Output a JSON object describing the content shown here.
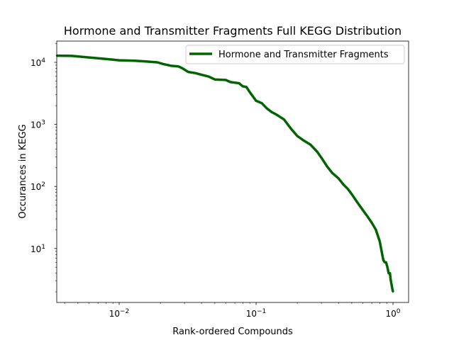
{
  "chart_data": {
    "type": "line",
    "title": "Hormone and Transmitter Fragments Full KEGG Distribution",
    "xlabel": "Rank-ordered Compounds",
    "ylabel": "Occurances in KEGG",
    "xscale": "log",
    "yscale": "log",
    "xlim": [
      0.0035,
      1.3
    ],
    "ylim": [
      1.35,
      22000
    ],
    "xticks": [
      {
        "value": 0.01,
        "base": "10",
        "exp": "−2"
      },
      {
        "value": 0.1,
        "base": "10",
        "exp": "−1"
      },
      {
        "value": 1,
        "base": "10",
        "exp": "0"
      }
    ],
    "yticks": [
      {
        "value": 10,
        "base": "10",
        "exp": "1"
      },
      {
        "value": 100,
        "base": "10",
        "exp": "2"
      },
      {
        "value": 1000,
        "base": "10",
        "exp": "3"
      },
      {
        "value": 10000,
        "base": "10",
        "exp": "4"
      }
    ],
    "grid": false,
    "legend_position": "top-right",
    "series": [
      {
        "name": "Hormone and Transmitter Fragments",
        "color": "#006400",
        "x": [
          0.0035,
          0.0045,
          0.006,
          0.008,
          0.01,
          0.013,
          0.016,
          0.019,
          0.021,
          0.024,
          0.027,
          0.029,
          0.032,
          0.036,
          0.04,
          0.045,
          0.05,
          0.06,
          0.065,
          0.07,
          0.075,
          0.08,
          0.085,
          0.09,
          0.1,
          0.11,
          0.12,
          0.13,
          0.14,
          0.16,
          0.18,
          0.2,
          0.22,
          0.25,
          0.28,
          0.3,
          0.33,
          0.36,
          0.4,
          0.43,
          0.47,
          0.5,
          0.55,
          0.6,
          0.65,
          0.7,
          0.75,
          0.8,
          0.83,
          0.85,
          0.87,
          0.89,
          0.91,
          0.93,
          0.95,
          0.96,
          0.97,
          0.98,
          0.99,
          1.0
        ],
        "values": [
          12800,
          12700,
          12000,
          11300,
          10800,
          10600,
          10300,
          10000,
          9400,
          8800,
          8600,
          8000,
          7000,
          6700,
          6300,
          5900,
          5300,
          5200,
          4800,
          4700,
          4600,
          4100,
          4000,
          3300,
          2400,
          2200,
          1800,
          1580,
          1450,
          1200,
          850,
          650,
          560,
          470,
          360,
          290,
          210,
          165,
          135,
          110,
          90,
          75,
          55,
          42,
          33,
          26,
          20,
          13,
          8.5,
          6.5,
          6.0,
          6.0,
          5.0,
          4.0,
          4.0,
          3.2,
          2.8,
          2.5,
          2.2,
          2.0
        ]
      }
    ]
  }
}
